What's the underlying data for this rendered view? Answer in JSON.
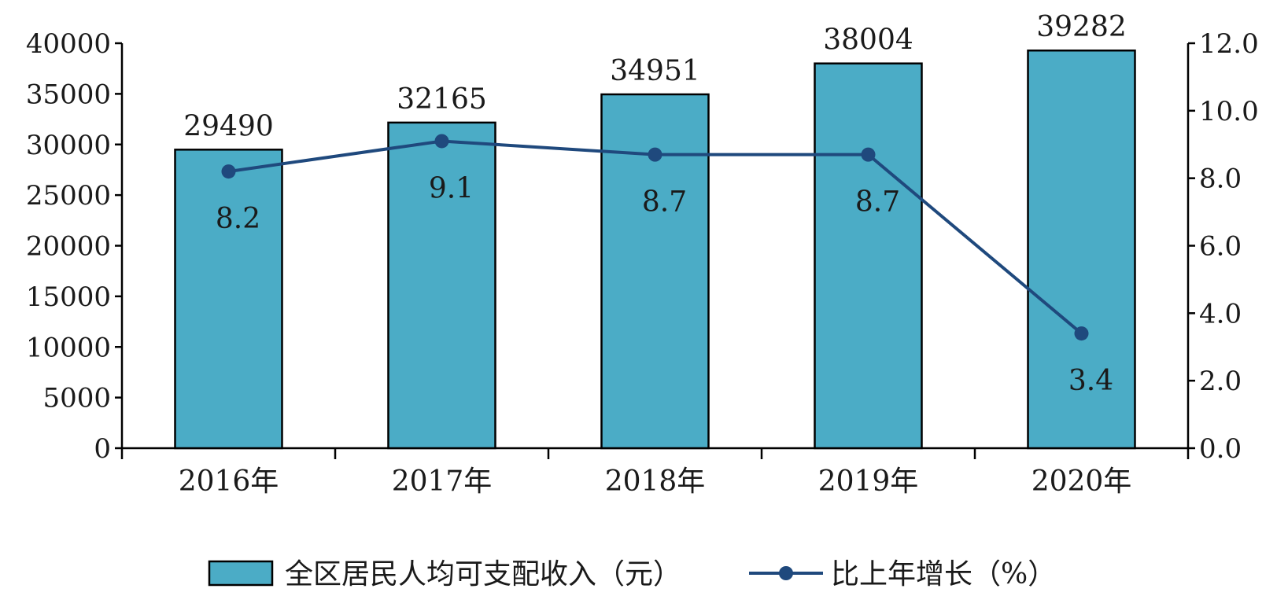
{
  "chart_data": {
    "type": "bar",
    "categories": [
      "2016年",
      "2017年",
      "2018年",
      "2019年",
      "2020年"
    ],
    "series": [
      {
        "name": "全区居民人均可支配收入（元）",
        "type": "bar",
        "axis": "left",
        "values": [
          29490,
          32165,
          34951,
          38004,
          39282
        ],
        "labels": [
          "29490",
          "32165",
          "34951",
          "38004",
          "39282"
        ],
        "color": "#4BACC6"
      },
      {
        "name": "比上年增长（%）",
        "type": "line",
        "axis": "right",
        "values": [
          8.2,
          9.1,
          8.7,
          8.7,
          3.4
        ],
        "labels": [
          "8.2",
          "9.1",
          "8.7",
          "8.7",
          "3.4"
        ],
        "color": "#1F497D"
      }
    ],
    "y_left": {
      "lim": [
        0,
        40000
      ],
      "ticks": [
        0,
        5000,
        10000,
        15000,
        20000,
        25000,
        30000,
        35000,
        40000
      ],
      "tick_labels": [
        "0",
        "5000",
        "10000",
        "15000",
        "20000",
        "25000",
        "30000",
        "35000",
        "40000"
      ]
    },
    "y_right": {
      "lim": [
        0,
        12
      ],
      "ticks": [
        0,
        2,
        4,
        6,
        8,
        10,
        12
      ],
      "tick_labels": [
        "0.0",
        "2.0",
        "4.0",
        "6.0",
        "8.0",
        "10.0",
        "12.0"
      ]
    },
    "grid": false,
    "legend": "bottom"
  }
}
